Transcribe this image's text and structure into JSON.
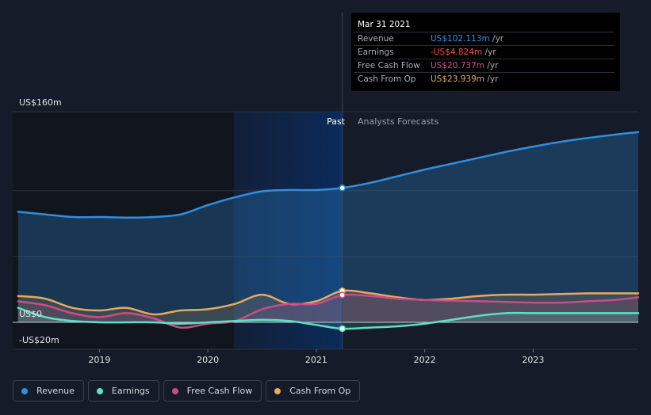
{
  "chart_data": {
    "type": "line",
    "y_axis_labels": [
      "US$160m",
      "US$0",
      "-US$20m"
    ],
    "ylim": [
      -20,
      160
    ],
    "xlim": [
      2018.2,
      2023.97
    ],
    "x_ticks": [
      2019,
      2020,
      2021,
      2022,
      2023
    ],
    "x_tick_labels": [
      "2019",
      "2020",
      "2021",
      "2022",
      "2023"
    ],
    "past_label": "Past",
    "forecast_label": "Analysts Forecasts",
    "divider_x": 2021.24,
    "highlight_start_x": 2020.24,
    "series": [
      {
        "name": "Revenue",
        "color": "#2f8fe0",
        "values": [
          [
            2018.25,
            84
          ],
          [
            2018.5,
            82
          ],
          [
            2018.75,
            80
          ],
          [
            2019,
            80
          ],
          [
            2019.25,
            79.5
          ],
          [
            2019.5,
            80
          ],
          [
            2019.75,
            82
          ],
          [
            2020,
            89
          ],
          [
            2020.25,
            95
          ],
          [
            2020.5,
            99.5
          ],
          [
            2020.75,
            100.5
          ],
          [
            2021,
            100.5
          ],
          [
            2021.24,
            102.1
          ],
          [
            2021.5,
            106
          ],
          [
            2021.75,
            111
          ],
          [
            2022,
            116
          ],
          [
            2022.25,
            120.5
          ],
          [
            2022.5,
            125
          ],
          [
            2022.75,
            129.5
          ],
          [
            2023,
            133.5
          ],
          [
            2023.25,
            137
          ],
          [
            2023.5,
            140
          ],
          [
            2023.75,
            142.5
          ],
          [
            2023.97,
            144.5
          ]
        ]
      },
      {
        "name": "Earnings",
        "color": "#5ce0c6",
        "values": [
          [
            2018.25,
            11
          ],
          [
            2018.5,
            4
          ],
          [
            2018.75,
            1
          ],
          [
            2019,
            0
          ],
          [
            2019.25,
            0
          ],
          [
            2019.5,
            0
          ],
          [
            2019.75,
            -1
          ],
          [
            2020,
            0
          ],
          [
            2020.25,
            1
          ],
          [
            2020.5,
            2
          ],
          [
            2020.75,
            1
          ],
          [
            2021,
            -2
          ],
          [
            2021.24,
            -4.8
          ],
          [
            2021.5,
            -4
          ],
          [
            2021.75,
            -3
          ],
          [
            2022,
            -1
          ],
          [
            2022.25,
            2
          ],
          [
            2022.5,
            5
          ],
          [
            2022.75,
            7
          ],
          [
            2023,
            7
          ],
          [
            2023.25,
            7
          ],
          [
            2023.5,
            7
          ],
          [
            2023.75,
            7
          ],
          [
            2023.97,
            7
          ]
        ]
      },
      {
        "name": "Free Cash Flow",
        "color": "#c84e87",
        "values": [
          [
            2018.25,
            16
          ],
          [
            2018.5,
            13
          ],
          [
            2018.75,
            7
          ],
          [
            2019,
            4
          ],
          [
            2019.25,
            7
          ],
          [
            2019.5,
            3
          ],
          [
            2019.75,
            -4
          ],
          [
            2020,
            -1
          ],
          [
            2020.25,
            1
          ],
          [
            2020.5,
            10
          ],
          [
            2020.75,
            14
          ],
          [
            2021,
            14
          ],
          [
            2021.24,
            20.7
          ],
          [
            2021.5,
            20
          ],
          [
            2021.75,
            18
          ],
          [
            2022,
            17
          ],
          [
            2022.25,
            16.5
          ],
          [
            2022.5,
            16
          ],
          [
            2022.75,
            15.5
          ],
          [
            2023,
            15
          ],
          [
            2023.25,
            15
          ],
          [
            2023.5,
            16
          ],
          [
            2023.75,
            17
          ],
          [
            2023.97,
            19
          ]
        ]
      },
      {
        "name": "Cash From Op",
        "color": "#e7a95c",
        "values": [
          [
            2018.25,
            20
          ],
          [
            2018.5,
            18
          ],
          [
            2018.75,
            11
          ],
          [
            2019,
            9
          ],
          [
            2019.25,
            11
          ],
          [
            2019.5,
            6
          ],
          [
            2019.75,
            9
          ],
          [
            2020,
            10
          ],
          [
            2020.25,
            14
          ],
          [
            2020.5,
            21
          ],
          [
            2020.75,
            14
          ],
          [
            2021,
            16
          ],
          [
            2021.24,
            23.9
          ],
          [
            2021.5,
            22
          ],
          [
            2021.75,
            19
          ],
          [
            2022,
            17
          ],
          [
            2022.25,
            18
          ],
          [
            2022.5,
            20
          ],
          [
            2022.75,
            21
          ],
          [
            2023,
            21
          ],
          [
            2023.25,
            21.5
          ],
          [
            2023.5,
            22
          ],
          [
            2023.75,
            22
          ],
          [
            2023.97,
            22
          ]
        ]
      }
    ],
    "marker_x": 2021.24
  },
  "tooltip": {
    "date": "Mar 31 2021",
    "rows": [
      {
        "label": "Revenue",
        "value": "US$102.113m",
        "unit": "/yr",
        "color": "#2f8fe0"
      },
      {
        "label": "Earnings",
        "value": "-US$4.824m",
        "unit": "/yr",
        "color": "#ff4d4d"
      },
      {
        "label": "Free Cash Flow",
        "value": "US$20.737m",
        "unit": "/yr",
        "color": "#d24f8d"
      },
      {
        "label": "Cash From Op",
        "value": "US$23.939m",
        "unit": "/yr",
        "color": "#e7a95c"
      }
    ]
  },
  "legend": [
    {
      "label": "Revenue",
      "color": "#2f8fe0"
    },
    {
      "label": "Earnings",
      "color": "#5ce0c6"
    },
    {
      "label": "Free Cash Flow",
      "color": "#c84e87"
    },
    {
      "label": "Cash From Op",
      "color": "#e7a95c"
    }
  ]
}
